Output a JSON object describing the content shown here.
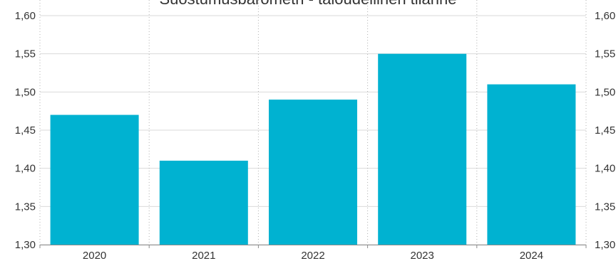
{
  "chart_data": {
    "type": "bar",
    "title": "Suostumusbarometri - taloudellinen tilanne",
    "xlabel": "",
    "ylabel": "",
    "categories": [
      "2020",
      "2021",
      "2022",
      "2023",
      "2024"
    ],
    "values": [
      1.47,
      1.41,
      1.49,
      1.55,
      1.51
    ],
    "ylim": [
      1.3,
      1.6
    ],
    "yticks": [
      "1,30",
      "1,35",
      "1,40",
      "1,45",
      "1,50",
      "1,55",
      "1,60"
    ],
    "grid": true,
    "bar_color": "#00b2d1",
    "grid_color": "#d9d9d9",
    "legend": "none"
  }
}
